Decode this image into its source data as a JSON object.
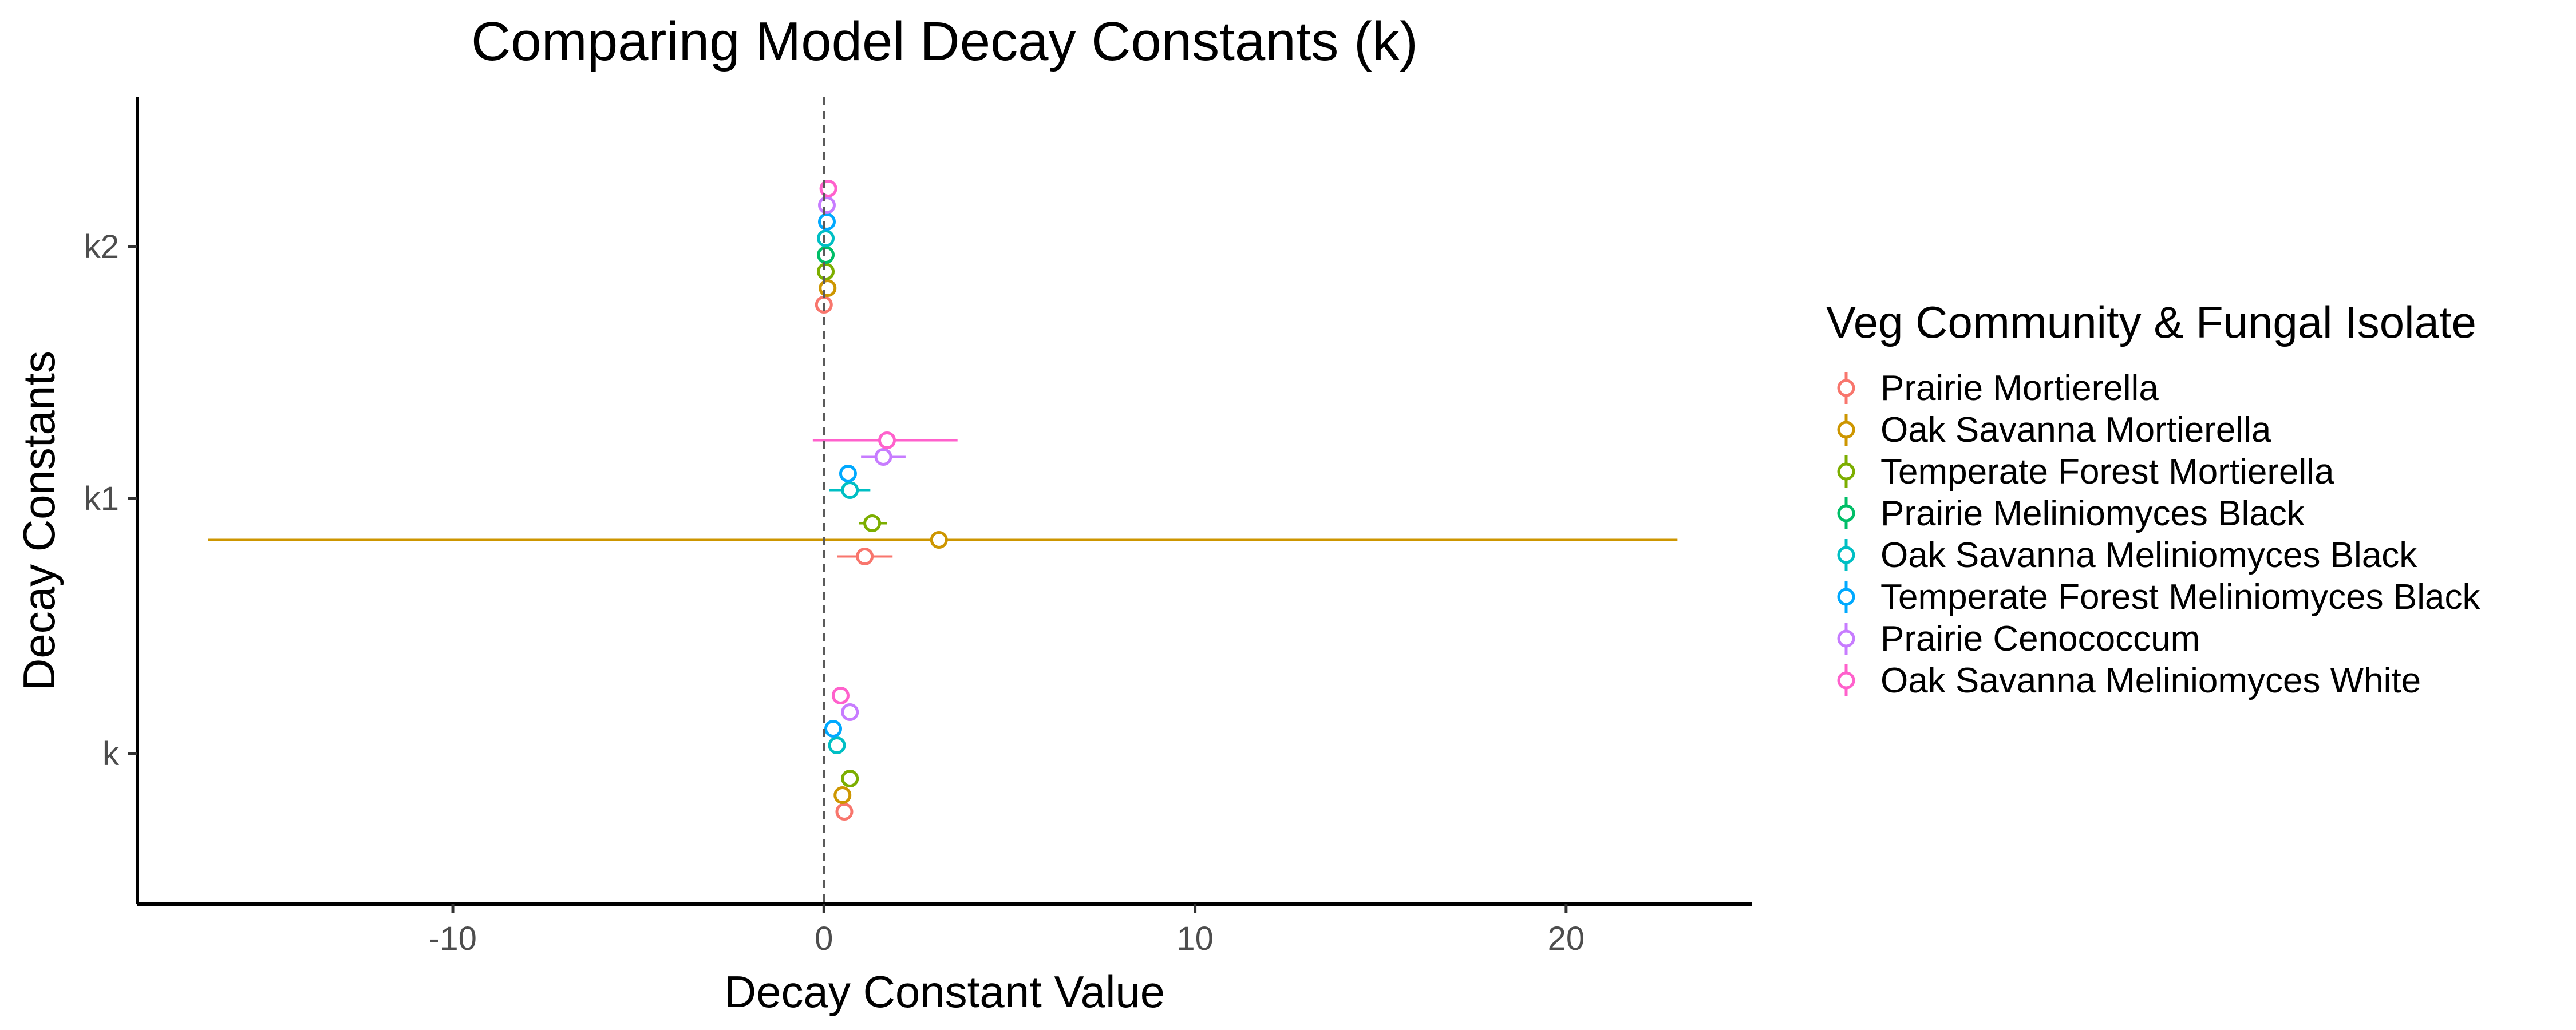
{
  "chart_data": {
    "type": "scatter",
    "subtype": "dot-and-whisker",
    "title": "Comparing Model Decay Constants (k)",
    "xlabel": "Decay Constant Value",
    "ylabel": "Decay Constants",
    "xlim": [
      -18.5,
      25
    ],
    "x_ticks": [
      -10,
      0,
      10,
      20
    ],
    "x_tick_labels": [
      "-10",
      "0",
      "10",
      "20"
    ],
    "categories": [
      "k",
      "k1",
      "k2"
    ],
    "reference_line": {
      "x": 0,
      "style": "dashed"
    },
    "grid": false,
    "legend": {
      "title": "Veg Community & Fungal Isolate",
      "position": "right"
    },
    "series": [
      {
        "name": "Prairie Mortierella",
        "color": "#F8766D",
        "values": [
          {
            "term": "k2",
            "estimate": 0.0,
            "low": -0.15,
            "high": 0.15
          },
          {
            "term": "k1",
            "estimate": 1.1,
            "low": 0.35,
            "high": 1.85
          },
          {
            "term": "k",
            "estimate": 0.55,
            "low": 0.45,
            "high": 0.65
          }
        ]
      },
      {
        "name": "Oak Savanna Mortierella",
        "color": "#CD9600",
        "values": [
          {
            "term": "k2",
            "estimate": 0.1,
            "low": 0.02,
            "high": 0.18
          },
          {
            "term": "k1",
            "estimate": 3.1,
            "low": -16.6,
            "high": 23.0
          },
          {
            "term": "k",
            "estimate": 0.5,
            "low": 0.42,
            "high": 0.58
          }
        ]
      },
      {
        "name": "Temperate Forest Mortierella",
        "color": "#7CAE00",
        "values": [
          {
            "term": "k2",
            "estimate": 0.05,
            "low": -0.03,
            "high": 0.13
          },
          {
            "term": "k1",
            "estimate": 1.3,
            "low": 0.95,
            "high": 1.7
          },
          {
            "term": "k",
            "estimate": 0.7,
            "low": 0.6,
            "high": 0.8
          }
        ]
      },
      {
        "name": "Prairie Meliniomyces Black",
        "color": "#00BE67",
        "values": [
          {
            "term": "k2",
            "estimate": 0.05,
            "low": -0.03,
            "high": 0.13
          },
          {
            "term": "k1",
            "estimate": null,
            "low": null,
            "high": null
          },
          {
            "term": "k",
            "estimate": null,
            "low": null,
            "high": null
          }
        ]
      },
      {
        "name": "Oak Savanna Meliniomyces Black",
        "color": "#00BFC4",
        "values": [
          {
            "term": "k2",
            "estimate": 0.05,
            "low": -0.03,
            "high": 0.13
          },
          {
            "term": "k1",
            "estimate": 0.7,
            "low": 0.15,
            "high": 1.25
          },
          {
            "term": "k",
            "estimate": 0.35,
            "low": 0.25,
            "high": 0.45
          }
        ]
      },
      {
        "name": "Temperate Forest Meliniomyces Black",
        "color": "#00A9FF",
        "values": [
          {
            "term": "k2",
            "estimate": 0.08,
            "low": 0.0,
            "high": 0.16
          },
          {
            "term": "k1",
            "estimate": 0.65,
            "low": 0.5,
            "high": 0.8
          },
          {
            "term": "k",
            "estimate": 0.25,
            "low": 0.17,
            "high": 0.33
          }
        ]
      },
      {
        "name": "Prairie Cenococcum",
        "color": "#C77CFF",
        "values": [
          {
            "term": "k2",
            "estimate": 0.08,
            "low": 0.0,
            "high": 0.16
          },
          {
            "term": "k1",
            "estimate": 1.6,
            "low": 1.0,
            "high": 2.2
          },
          {
            "term": "k",
            "estimate": 0.7,
            "low": 0.6,
            "high": 0.8
          }
        ]
      },
      {
        "name": "Oak Savanna Meliniomyces White",
        "color": "#FF61CC",
        "values": [
          {
            "term": "k2",
            "estimate": 0.12,
            "low": 0.04,
            "high": 0.2
          },
          {
            "term": "k1",
            "estimate": 1.7,
            "low": -0.3,
            "high": 3.6
          },
          {
            "term": "k",
            "estimate": 0.45,
            "low": 0.35,
            "high": 0.55
          }
        ]
      }
    ]
  }
}
